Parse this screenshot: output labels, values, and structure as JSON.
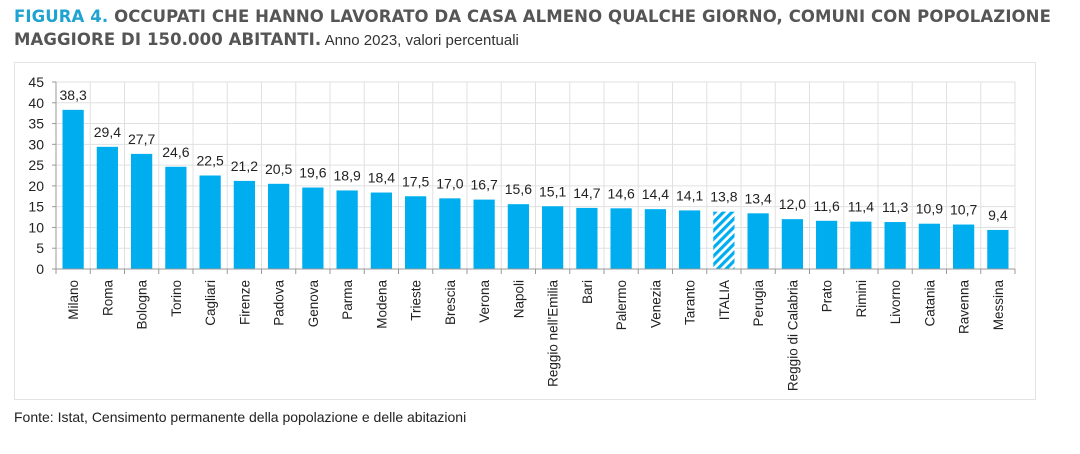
{
  "header": {
    "figure_label": "FIGURA 4.",
    "title": " OCCUPATI CHE HANNO LAVORATO DA CASA ALMENO QUALCHE GIORNO, COMUNI CON POPOLAZIONE MAGGIORE DI 150.000 ABITANTI.",
    "subtitle": " Anno 2023, valori percentuali"
  },
  "footer": {
    "source": "Fonte: Istat, Censimento permanente della popolazione e delle abitazioni"
  },
  "colors": {
    "bar": "#00aeef",
    "hatch": "#00aeef",
    "grid": "#e0e0e0",
    "axis": "#999999",
    "figure_label": "#1fa3d1",
    "title": "#555555"
  },
  "chart_data": {
    "type": "bar",
    "title": "Occupati che hanno lavorato da casa almeno qualche giorno, comuni con popolazione maggiore di 150.000 abitanti. Anno 2023, valori percentuali",
    "xlabel": "",
    "ylabel": "",
    "ylim": [
      0,
      45
    ],
    "yticks": [
      0,
      5,
      10,
      15,
      20,
      25,
      30,
      35,
      40,
      45
    ],
    "grid": true,
    "legend": null,
    "categories": [
      "Milano",
      "Roma",
      "Bologna",
      "Torino",
      "Cagliari",
      "Firenze",
      "Padova",
      "Genova",
      "Parma",
      "Modena",
      "Trieste",
      "Brescia",
      "Verona",
      "Napoli",
      "Reggio nell'Emilia",
      "Bari",
      "Palermo",
      "Venezia",
      "Taranto",
      "ITALIA",
      "Perugia",
      "Reggio di Calabria",
      "Prato",
      "Rimini",
      "Livorno",
      "Catania",
      "Ravenna",
      "Messina"
    ],
    "values": [
      38.3,
      29.4,
      27.7,
      24.6,
      22.5,
      21.2,
      20.5,
      19.6,
      18.9,
      18.4,
      17.5,
      17.0,
      16.7,
      15.6,
      15.1,
      14.7,
      14.6,
      14.4,
      14.1,
      13.8,
      13.4,
      12.0,
      11.6,
      11.4,
      11.3,
      10.9,
      10.7,
      9.4
    ],
    "value_labels": [
      "38,3",
      "29,4",
      "27,7",
      "24,6",
      "22,5",
      "21,2",
      "20,5",
      "19,6",
      "18,9",
      "18,4",
      "17,5",
      "17,0",
      "16,7",
      "15,6",
      "15,1",
      "14,7",
      "14,6",
      "14,4",
      "14,1",
      "13,8",
      "13,4",
      "12,0",
      "11,6",
      "11,4",
      "11,3",
      "10,9",
      "10,7",
      "9,4"
    ],
    "highlighted": [
      "ITALIA"
    ],
    "highlight_style": "hatched"
  }
}
